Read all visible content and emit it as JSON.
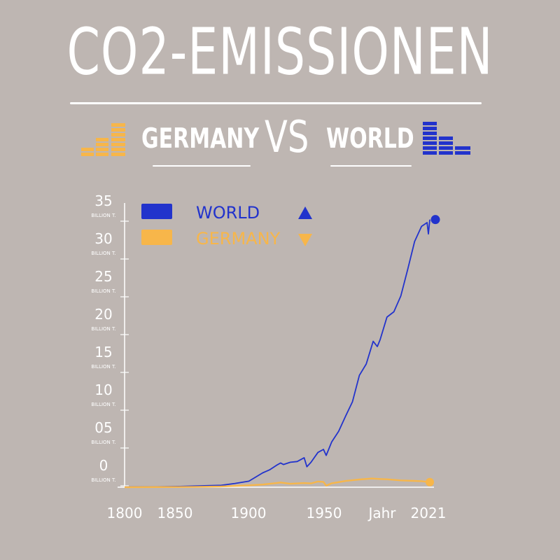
{
  "header": {
    "title": "CO2-EMISSIONEN",
    "left_word": "GERMANY",
    "vs_word": "VS",
    "right_word": "WORLD"
  },
  "colors": {
    "background": "#beb6b2",
    "world": "#2233cc",
    "germany": "#f7b64a",
    "text": "#ffffff"
  },
  "icons": {
    "left": "bar-stack-orange-icon",
    "right": "bar-stack-blue-icon"
  },
  "chart_data": {
    "type": "line",
    "xlabel": "Jahr",
    "ylabel": "",
    "x_ticks": [
      "1800",
      "1850",
      "1900",
      "1950",
      "Jahr",
      "2021"
    ],
    "y_ticks": [
      "0",
      "05",
      "10",
      "15",
      "20",
      "25",
      "30",
      "35"
    ],
    "y_unit": "BILLION T.",
    "xlim": [
      1800,
      2021
    ],
    "ylim": [
      0,
      35
    ],
    "legend_position": "top-left",
    "legend": [
      {
        "name": "WORLD",
        "marker": "triangle-up"
      },
      {
        "name": "GERMANY",
        "marker": "triangle-down"
      }
    ],
    "series": [
      {
        "name": "WORLD",
        "x": [
          1800,
          1820,
          1840,
          1860,
          1870,
          1880,
          1890,
          1900,
          1905,
          1910,
          1913,
          1915,
          1920,
          1925,
          1930,
          1932,
          1935,
          1940,
          1944,
          1946,
          1950,
          1955,
          1960,
          1965,
          1970,
          1975,
          1980,
          1983,
          1985,
          1990,
          1995,
          2000,
          2005,
          2010,
          2015,
          2019,
          2020,
          2021
        ],
        "values": [
          0.03,
          0.05,
          0.1,
          0.2,
          0.25,
          0.5,
          0.8,
          1.9,
          2.3,
          2.9,
          3.2,
          3.0,
          3.3,
          3.4,
          3.9,
          2.7,
          3.3,
          4.6,
          5.0,
          4.2,
          6.0,
          7.4,
          9.4,
          11.3,
          14.8,
          16.3,
          19.3,
          18.6,
          19.5,
          22.5,
          23.2,
          25.3,
          28.8,
          32.5,
          34.5,
          35.0,
          33.5,
          35.4
        ]
      },
      {
        "name": "GERMANY",
        "x": [
          1800,
          1850,
          1870,
          1890,
          1900,
          1910,
          1913,
          1920,
          1930,
          1935,
          1940,
          1944,
          1946,
          1950,
          1960,
          1970,
          1979,
          1985,
          1990,
          2000,
          2010,
          2015,
          2021
        ],
        "values": [
          0.0,
          0.04,
          0.1,
          0.25,
          0.35,
          0.55,
          0.62,
          0.45,
          0.55,
          0.5,
          0.75,
          0.7,
          0.2,
          0.52,
          0.82,
          1.02,
          1.15,
          1.08,
          1.05,
          0.9,
          0.83,
          0.8,
          0.67
        ]
      }
    ]
  }
}
